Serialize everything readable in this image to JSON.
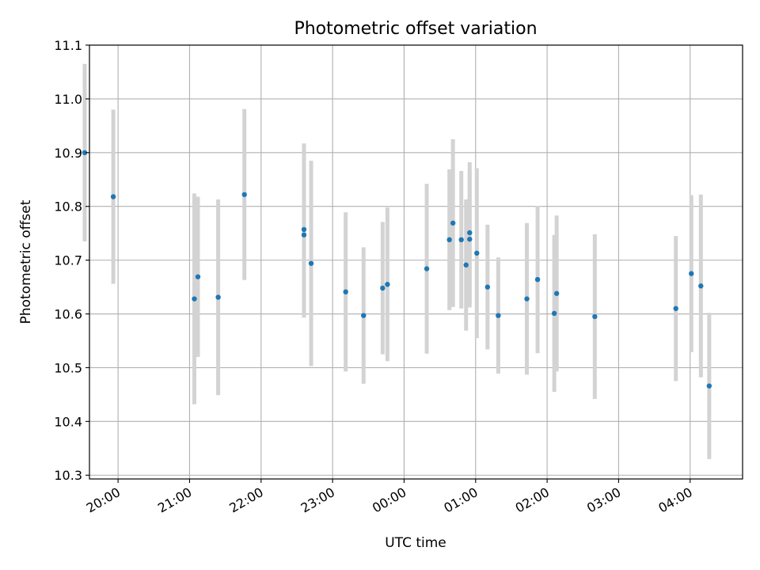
{
  "chart_data": {
    "type": "scatter",
    "title": "Photometric offset variation",
    "xlabel": "UTC time",
    "ylabel": "Photometric offset",
    "xlim": [
      "19:36",
      "04:44"
    ],
    "ylim": [
      10.293,
      11.1
    ],
    "x_ticks": [
      "20:00",
      "21:00",
      "22:00",
      "23:00",
      "00:00",
      "01:00",
      "02:00",
      "03:00",
      "04:00"
    ],
    "y_ticks": [
      10.3,
      10.4,
      10.5,
      10.6,
      10.7,
      10.8,
      10.9,
      11.0,
      11.1
    ],
    "y_tick_labels": [
      "10.3",
      "10.4",
      "10.5",
      "10.6",
      "10.7",
      "10.8",
      "10.9",
      "11.0",
      "11.1"
    ],
    "grid": true,
    "point_color": "#1f77b4",
    "errorbar_color": "#d3d3d3",
    "points": [
      {
        "time": "19:32",
        "y": 10.9,
        "yerr": 0.165
      },
      {
        "time": "19:56",
        "y": 10.818,
        "yerr": 0.162
      },
      {
        "time": "21:04",
        "y": 10.628,
        "yerr": 0.196
      },
      {
        "time": "21:07",
        "y": 10.669,
        "yerr": 0.149
      },
      {
        "time": "21:24",
        "y": 10.631,
        "yerr": 0.182
      },
      {
        "time": "21:46",
        "y": 10.822,
        "yerr": 0.159
      },
      {
        "time": "22:36",
        "y": 10.757,
        "yerr": 0.16
      },
      {
        "time": "22:36",
        "y": 10.747,
        "yerr": 0.154
      },
      {
        "time": "22:42",
        "y": 10.694,
        "yerr": 0.191
      },
      {
        "time": "23:11",
        "y": 10.641,
        "yerr": 0.148
      },
      {
        "time": "23:26",
        "y": 10.597,
        "yerr": 0.127
      },
      {
        "time": "23:42",
        "y": 10.648,
        "yerr": 0.123
      },
      {
        "time": "23:46",
        "y": 10.655,
        "yerr": 0.143
      },
      {
        "time": "00:19",
        "y": 10.684,
        "yerr": 0.158
      },
      {
        "time": "00:38",
        "y": 10.738,
        "yerr": 0.131
      },
      {
        "time": "00:41",
        "y": 10.769,
        "yerr": 0.156
      },
      {
        "time": "00:48",
        "y": 10.738,
        "yerr": 0.128
      },
      {
        "time": "00:52",
        "y": 10.691,
        "yerr": 0.122
      },
      {
        "time": "00:55",
        "y": 10.751,
        "yerr": 0.131
      },
      {
        "time": "00:55",
        "y": 10.739,
        "yerr": 0.127
      },
      {
        "time": "01:01",
        "y": 10.713,
        "yerr": 0.158
      },
      {
        "time": "01:10",
        "y": 10.65,
        "yerr": 0.116
      },
      {
        "time": "01:19",
        "y": 10.597,
        "yerr": 0.108
      },
      {
        "time": "01:43",
        "y": 10.628,
        "yerr": 0.141
      },
      {
        "time": "01:52",
        "y": 10.664,
        "yerr": 0.137
      },
      {
        "time": "02:06",
        "y": 10.601,
        "yerr": 0.146
      },
      {
        "time": "02:08",
        "y": 10.638,
        "yerr": 0.145
      },
      {
        "time": "02:40",
        "y": 10.595,
        "yerr": 0.153
      },
      {
        "time": "03:48",
        "y": 10.61,
        "yerr": 0.135
      },
      {
        "time": "04:01",
        "y": 10.675,
        "yerr": 0.146
      },
      {
        "time": "04:09",
        "y": 10.652,
        "yerr": 0.17
      },
      {
        "time": "04:16",
        "y": 10.466,
        "yerr": 0.136
      }
    ]
  }
}
